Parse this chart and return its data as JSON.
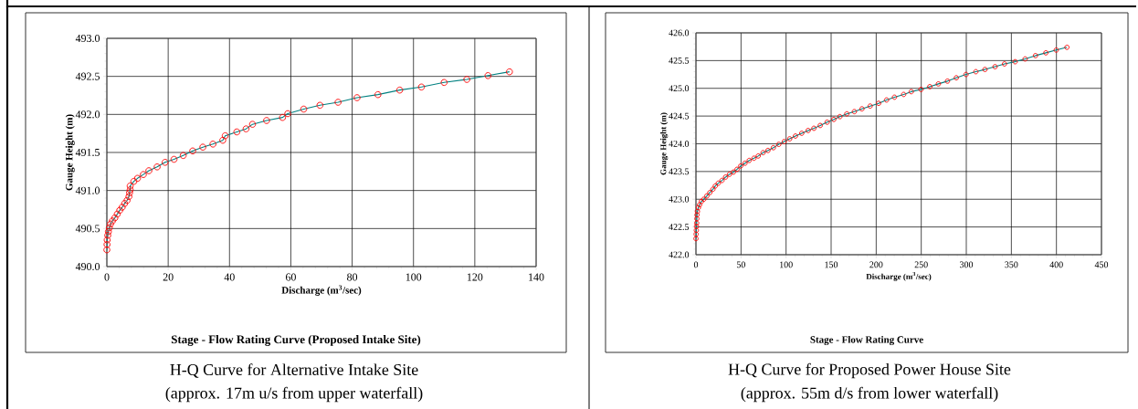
{
  "chart_data": [
    {
      "type": "line",
      "title": "Stage - Flow Rating Curve (Proposed Intake Site)",
      "xlabel": "Discharge (m$^{3}$/sec)",
      "ylabel": "Gauge Height (m)",
      "xlim": [
        0,
        140
      ],
      "xticks": [
        0,
        20,
        40,
        60,
        80,
        100,
        120,
        140
      ],
      "ylim": [
        490,
        493
      ],
      "yticks": [
        {
          "value": 490,
          "label": "490.0"
        },
        {
          "value": 490.5,
          "label": "490.5"
        },
        {
          "value": 491,
          "label": "491.0"
        },
        {
          "value": 491.5,
          "label": "491.5"
        },
        {
          "value": 492,
          "label": "492.0"
        },
        {
          "value": 492.5,
          "label": "492.5"
        },
        {
          "value": 493,
          "label": "493.0"
        }
      ],
      "grid": true,
      "marker": "circle",
      "annotations": [
        "H-Q Curve for Alternative Intake Site",
        "(approx. 17m u/s from upper waterfall)"
      ],
      "series": [
        {
          "color": "#008080",
          "x": [
            0,
            0.05,
            0.1,
            0.3,
            0.5,
            0.8,
            1.2,
            1.8,
            2.6,
            3.4,
            4.2,
            5.0,
            5.8,
            6.6,
            7.2,
            7.4,
            7.6,
            7.6,
            8.8,
            10.0,
            11.9,
            13.7,
            16.4,
            19.0,
            21.9,
            24.9,
            28.0,
            31.3,
            34.6,
            37.8,
            38.6,
            42.4,
            45.4,
            47.5,
            52.1,
            57.3,
            59.0,
            64.2,
            69.5,
            75.4,
            81.6,
            88.4,
            95.5,
            102.6,
            110.0,
            117.4,
            124.3,
            131.3
          ],
          "values": [
            490.22,
            490.29,
            490.35,
            490.41,
            490.46,
            490.51,
            490.56,
            490.6,
            490.64,
            490.69,
            490.74,
            490.78,
            490.83,
            490.87,
            490.92,
            490.97,
            491.01,
            491.06,
            491.12,
            491.16,
            491.21,
            491.26,
            491.31,
            491.37,
            491.41,
            491.46,
            491.52,
            491.57,
            491.61,
            491.66,
            491.72,
            491.77,
            491.81,
            491.87,
            491.92,
            491.96,
            492.01,
            492.07,
            492.12,
            492.16,
            492.22,
            492.26,
            492.32,
            492.36,
            492.42,
            492.46,
            492.51,
            492.56
          ],
          "colors": [
            "#ff0000",
            "#ff0000",
            "#ff0000",
            "#ff0000",
            "#ff0000",
            "#ff0000",
            "#ff0000",
            "#ff0000",
            "#ff0000",
            "#ff0000",
            "#ff0000",
            "#ff0000",
            "#ff0000",
            "#ff0000",
            "#ff0000",
            "#ff0000",
            "#ff0000",
            "#ff0000",
            "#ff0000",
            "#ff0000",
            "#ff0000",
            "#ff0000",
            "#ff0000",
            "#ff0000",
            "#ff0000",
            "#ff0000",
            "#ff0000",
            "#ff0000",
            "#ff0000",
            "#ff0000",
            "#ff0000",
            "#ff0000",
            "#ff0000",
            "#ff0000",
            "#ff0000",
            "#ff0000",
            "#ff0000",
            "#ff0000",
            "#ff0000",
            "#ff0000",
            "#ff0000",
            "#ff0000",
            "#ff0000",
            "#ff0000",
            "#ff0000",
            "#ff0000",
            "#ff0000",
            "#ff0000"
          ]
        }
      ]
    },
    {
      "type": "line",
      "title": "Stage - Flow Rating Curve",
      "xlabel": "Discharge (m$^{3}$/sec)",
      "ylabel": "Gauge Height (m)",
      "xlim": [
        0,
        450
      ],
      "xticks": [
        0,
        50,
        100,
        150,
        200,
        250,
        300,
        350,
        400,
        450
      ],
      "ylim": [
        422,
        426
      ],
      "yticks": [
        {
          "value": 422,
          "label": "422.0"
        },
        {
          "value": 422.5,
          "label": "422.5"
        },
        {
          "value": 423,
          "label": "423.0"
        },
        {
          "value": 423.5,
          "label": "423.5"
        },
        {
          "value": 424,
          "label": "424.0"
        },
        {
          "value": 424.5,
          "label": "424.5"
        },
        {
          "value": 425,
          "label": "425.0"
        },
        {
          "value": 425.5,
          "label": "425.5"
        },
        {
          "value": 426,
          "label": "426.0"
        }
      ],
      "grid": true,
      "marker": "circle",
      "annotations": [
        "H-Q Curve for Proposed Power House Site",
        "(approx. 55m d/s from lower waterfall)"
      ],
      "series": [
        {
          "color": "#008080",
          "x": [
            0,
            0.2,
            0.4,
            0.6,
            0.8,
            1.0,
            1.2,
            1.6,
            2.7,
            4.0,
            6.0,
            8.7,
            12.1,
            15.4,
            18.8,
            21.5,
            24.8,
            28.9,
            32.9,
            37.2,
            41.6,
            45.6,
            49.7,
            54.4,
            59.1,
            64.4,
            69.1,
            74.5,
            79.9,
            85.9,
            91.9,
            98.0,
            104.0,
            110.4,
            117.4,
            124.5,
            130.9,
            137.9,
            145.6,
            153.0,
            159.7,
            167.4,
            175.8,
            184.2,
            193.3,
            202.7,
            211.5,
            220.3,
            230.5,
            238.9,
            249.7,
            259.5,
            269.0,
            279.1,
            288.9,
            299.7,
            310.6,
            320.7,
            331.9,
            342.4,
            354.2,
            365.3,
            376.8,
            388.3,
            399.8,
            411.7
          ],
          "values": [
            422.29,
            422.37,
            422.44,
            422.51,
            422.57,
            422.65,
            422.72,
            422.78,
            422.85,
            422.9,
            422.96,
            423.0,
            423.06,
            423.12,
            423.18,
            423.24,
            423.29,
            423.34,
            423.4,
            423.45,
            423.49,
            423.54,
            423.6,
            423.65,
            423.7,
            423.74,
            423.78,
            423.84,
            423.88,
            423.93,
            423.99,
            424.04,
            424.09,
            424.14,
            424.19,
            424.24,
            424.28,
            424.33,
            424.39,
            424.44,
            424.49,
            424.54,
            424.58,
            424.63,
            424.68,
            424.73,
            424.79,
            424.84,
            424.89,
            424.94,
            424.98,
            425.03,
            425.08,
            425.13,
            425.19,
            425.25,
            425.3,
            425.34,
            425.39,
            425.44,
            425.48,
            425.53,
            425.59,
            425.64,
            425.69,
            425.74
          ],
          "colors": [
            "#ff0000",
            "#ff0000",
            "#ff0000",
            "#ff0000",
            "#ff0000",
            "#ff0000",
            "#ff0000",
            "#ff0000",
            "#ff0000",
            "#ff0000",
            "#ff0000",
            "#ff0000",
            "#ff0000",
            "#ff0000",
            "#ff0000",
            "#ff0000",
            "#ff0000",
            "#ff0000",
            "#ff0000",
            "#ff0000",
            "#ff0000",
            "#ff0000",
            "#ff0000",
            "#ff0000",
            "#ff0000",
            "#ff0000",
            "#ff0000",
            "#ff0000",
            "#ff0000",
            "#ff0000",
            "#ff0000",
            "#ff0000",
            "#ff0000",
            "#ff0000",
            "#ff0000",
            "#ff0000",
            "#ff0000",
            "#ff0000",
            "#ff0000",
            "#ff0000",
            "#ff0000",
            "#ff0000",
            "#ff0000",
            "#ff0000",
            "#ff0000",
            "#ff0000",
            "#ff0000",
            "#ff0000",
            "#ff0000",
            "#ff0000",
            "#ff0000",
            "#ff0000",
            "#ff0000",
            "#ff0000",
            "#ff0000",
            "#ff0000",
            "#ff0000",
            "#ff0000",
            "#ff0000",
            "#ff0000",
            "#ff0000",
            "#ff0000",
            "#ff0000",
            "#ff0000",
            "#ff0000",
            "#ff0000"
          ]
        }
      ]
    }
  ]
}
